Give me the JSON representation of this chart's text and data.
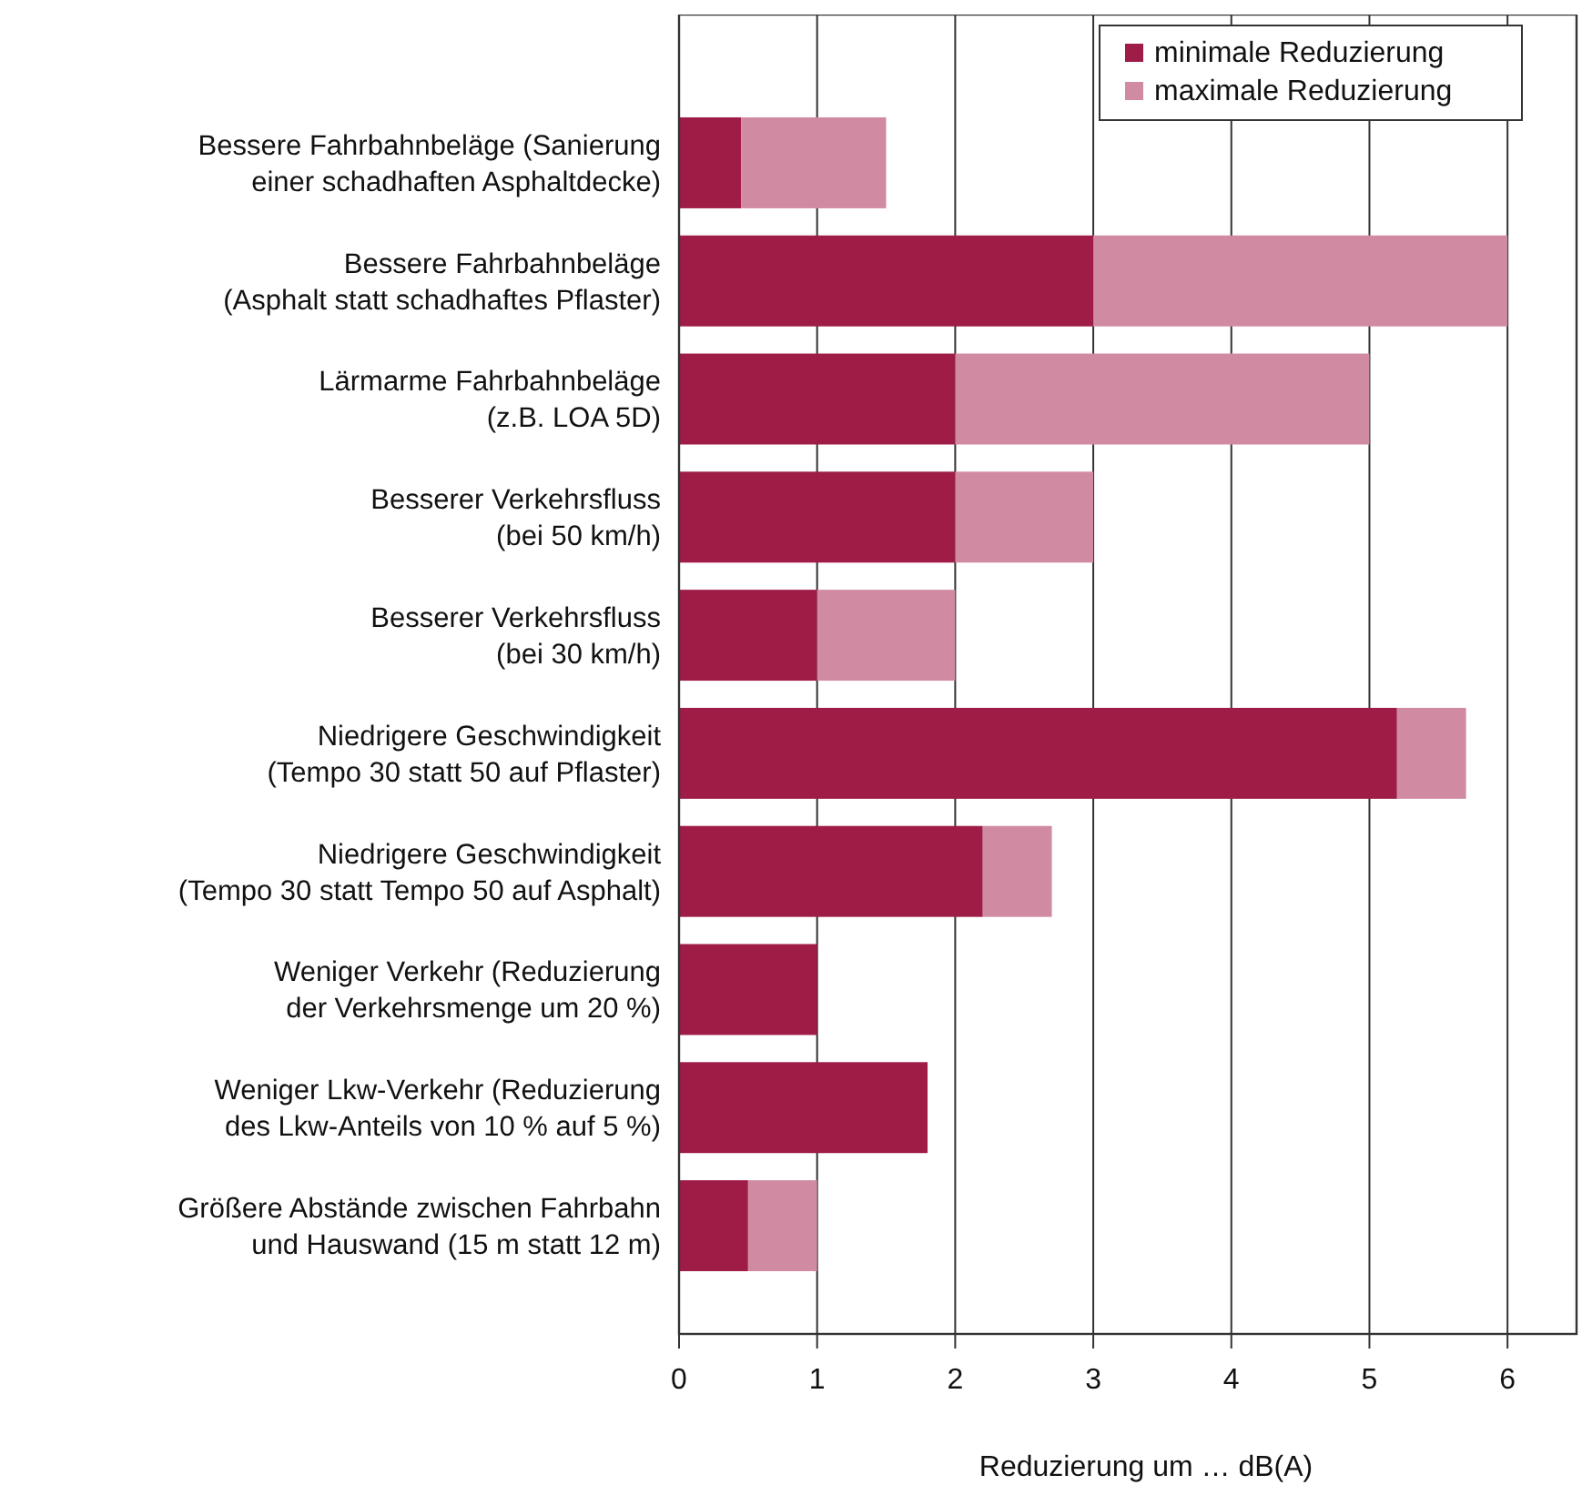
{
  "chart_data": {
    "type": "bar",
    "orientation": "horizontal",
    "stacked": true,
    "xlabel": "Reduzierung um … dB(A)",
    "categories": [
      "Bessere Fahrbahnbeläge (Sanierung\neiner schadhaften Asphaltdecke)",
      "Bessere Fahrbahnbeläge\n(Asphalt statt schadhaftes Pflaster)",
      "Lärmarme Fahrbahnbeläge\n(z.B. LOA 5D)",
      "Besserer Verkehrsfluss\n(bei 50 km/h)",
      "Besserer Verkehrsfluss\n(bei 30 km/h)",
      "Niedrigere Geschwindigkeit\n(Tempo 30 statt 50 auf Pflaster)",
      "Niedrigere Geschwindigkeit\n(Tempo 30 statt Tempo 50 auf Asphalt)",
      "Weniger Verkehr (Reduzierung\nder Verkehrsmenge um 20 %)",
      "Weniger Lkw-Verkehr (Reduzierung\ndes Lkw-Anteils von 10 % auf 5 %)",
      "Größere Abstände zwischen Fahrbahn\nund Hauswand (15 m statt 12 m)"
    ],
    "series": [
      {
        "name": "minimale Reduzierung",
        "color": "#9e1c45",
        "values": [
          0.45,
          3,
          2,
          2,
          1,
          5.2,
          2.2,
          1,
          1.8,
          0.5
        ]
      },
      {
        "name": "maximale Reduzierung",
        "color": "#d08ba3",
        "values": [
          1.05,
          3,
          3,
          1,
          1,
          0.5,
          0.5,
          null,
          null,
          0.5
        ]
      }
    ],
    "xlim": [
      0,
      6.5
    ],
    "xticks": [
      0,
      1,
      2,
      3,
      4,
      5,
      6
    ],
    "grid": "x",
    "legend": "top right"
  }
}
